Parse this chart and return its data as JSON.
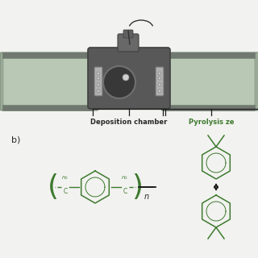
{
  "bg_color": "#f2f2f0",
  "label_b": "b)",
  "label_dep": "Deposition chamber",
  "label_pyr": "Pyrolysis ze",
  "green_color": "#3d7a2e",
  "text_color": "#2a2a2a",
  "arrow_color": "#1a1a1a",
  "bracket_color": "#1a1a1a",
  "dep_label_color": "#2a2a2a",
  "pyr_label_color": "#3d7a2e"
}
